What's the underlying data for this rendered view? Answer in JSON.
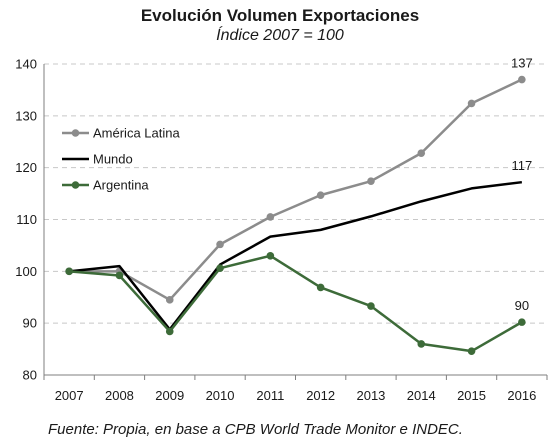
{
  "chart_data": {
    "type": "line",
    "title": "Evolución Volumen Exportaciones",
    "subtitle": "Índice 2007 = 100",
    "source": "Fuente: Propia, en base a CPB World Trade Monitor e INDEC.",
    "x": [
      "2007",
      "2008",
      "2009",
      "2010",
      "2011",
      "2012",
      "2013",
      "2014",
      "2015",
      "2016"
    ],
    "ylim": [
      80,
      140
    ],
    "yticks": [
      80,
      90,
      100,
      110,
      120,
      130,
      140
    ],
    "grid": "horizontal dashed",
    "legend_position": "top-left",
    "series": [
      {
        "name": "América Latina",
        "color": "#8c8c8c",
        "markers": true,
        "values": [
          100,
          100,
          94.5,
          105.2,
          110.5,
          114.7,
          117.4,
          122.8,
          132.4,
          137
        ],
        "end_label": "137"
      },
      {
        "name": "Mundo",
        "color": "#000000",
        "markers": false,
        "values": [
          100,
          101,
          88.8,
          101.3,
          106.7,
          108,
          110.6,
          113.5,
          116,
          117.2
        ],
        "end_label": "117"
      },
      {
        "name": "Argentina",
        "color": "#3d6b39",
        "markers": true,
        "values": [
          100,
          99.2,
          88.4,
          100.6,
          103,
          96.9,
          93.3,
          86,
          84.6,
          90.2
        ],
        "end_label": "90"
      }
    ]
  }
}
